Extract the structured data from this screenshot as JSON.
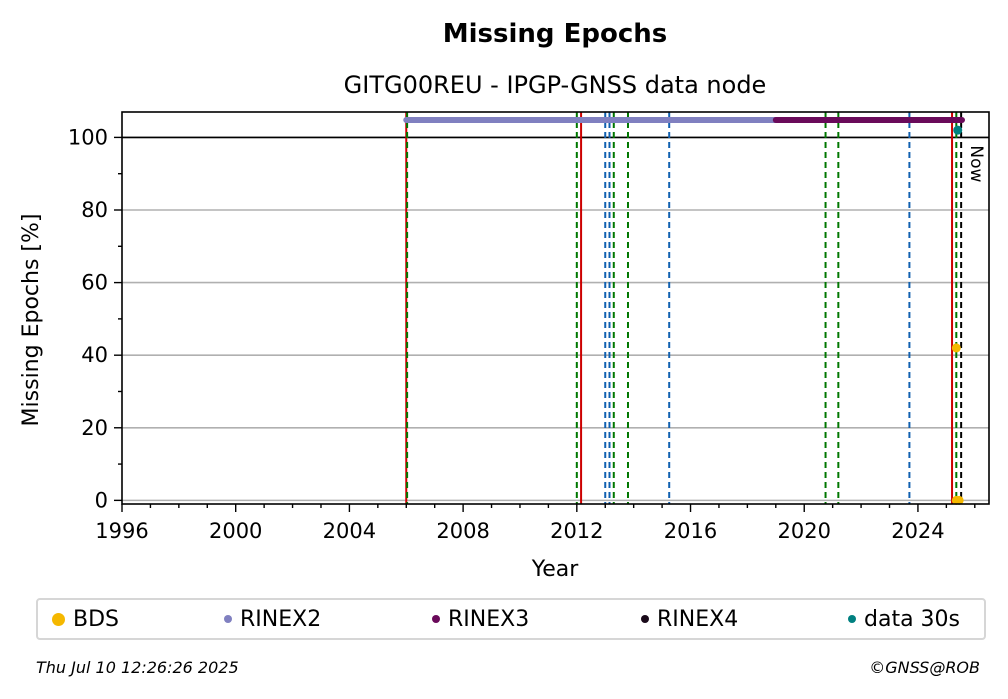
{
  "chart_data": {
    "type": "scatter",
    "title": "Missing Epochs",
    "subtitle": "GITG00REU - IPGP-GNSS data node",
    "xlabel": "Year",
    "ylabel": "Missing Epochs [%]",
    "xlim": [
      1996,
      2026.5
    ],
    "ylim": [
      -1,
      107
    ],
    "x_ticks": [
      1996,
      2000,
      2004,
      2008,
      2012,
      2016,
      2020,
      2024
    ],
    "y_ticks": [
      0,
      20,
      40,
      60,
      80,
      100
    ],
    "grid": "y",
    "reference_line_y": 100,
    "now_label": "Now",
    "now_x": 2025.52,
    "series": [
      {
        "name": "BDS",
        "color": "#f5b800",
        "points": [
          [
            2025.35,
            42
          ],
          [
            2025.35,
            0
          ],
          [
            2025.45,
            0
          ]
        ]
      },
      {
        "name": "RINEX2",
        "color": "#8080c0",
        "segments": [
          [
            2006.0,
            2019.0,
            104.8
          ]
        ]
      },
      {
        "name": "RINEX3",
        "color": "#6a0a5a",
        "segments": [
          [
            2019.0,
            2025.55,
            104.8
          ]
        ]
      },
      {
        "name": "RINEX4",
        "color": "#1a0a1a",
        "points": []
      },
      {
        "name": "data 30s",
        "color": "#008080",
        "points": [
          [
            2025.4,
            102
          ]
        ]
      }
    ],
    "vertical_lines": [
      {
        "x": 2006.0,
        "color": "#cc0000",
        "style": "solid"
      },
      {
        "x": 2006.03,
        "color": "#007700",
        "style": "dashed"
      },
      {
        "x": 2012.0,
        "color": "#007700",
        "style": "dashed"
      },
      {
        "x": 2012.15,
        "color": "#cc0000",
        "style": "solid"
      },
      {
        "x": 2013.0,
        "color": "#1060b0",
        "style": "dashed"
      },
      {
        "x": 2013.15,
        "color": "#1060b0",
        "style": "dashed"
      },
      {
        "x": 2013.3,
        "color": "#007700",
        "style": "dashed"
      },
      {
        "x": 2013.8,
        "color": "#007700",
        "style": "dashed"
      },
      {
        "x": 2015.25,
        "color": "#1060b0",
        "style": "dashed"
      },
      {
        "x": 2020.75,
        "color": "#007700",
        "style": "dashed"
      },
      {
        "x": 2021.2,
        "color": "#007700",
        "style": "dashed"
      },
      {
        "x": 2023.7,
        "color": "#1060b0",
        "style": "dashed"
      },
      {
        "x": 2025.2,
        "color": "#cc0000",
        "style": "solid"
      },
      {
        "x": 2025.35,
        "color": "#007700",
        "style": "dashed"
      },
      {
        "x": 2025.52,
        "color": "#000000",
        "style": "dashed"
      }
    ]
  },
  "legend": [
    {
      "label": "BDS",
      "color": "#f5b800",
      "size": "large"
    },
    {
      "label": "RINEX2",
      "color": "#8080c0",
      "size": "small"
    },
    {
      "label": "RINEX3",
      "color": "#6a0a5a",
      "size": "small"
    },
    {
      "label": "RINEX4",
      "color": "#1a0a1a",
      "size": "small"
    },
    {
      "label": "data 30s",
      "color": "#008080",
      "size": "small"
    }
  ],
  "footer": {
    "timestamp": "Thu Jul 10 12:26:26 2025",
    "credit": "©GNSS@ROB"
  }
}
